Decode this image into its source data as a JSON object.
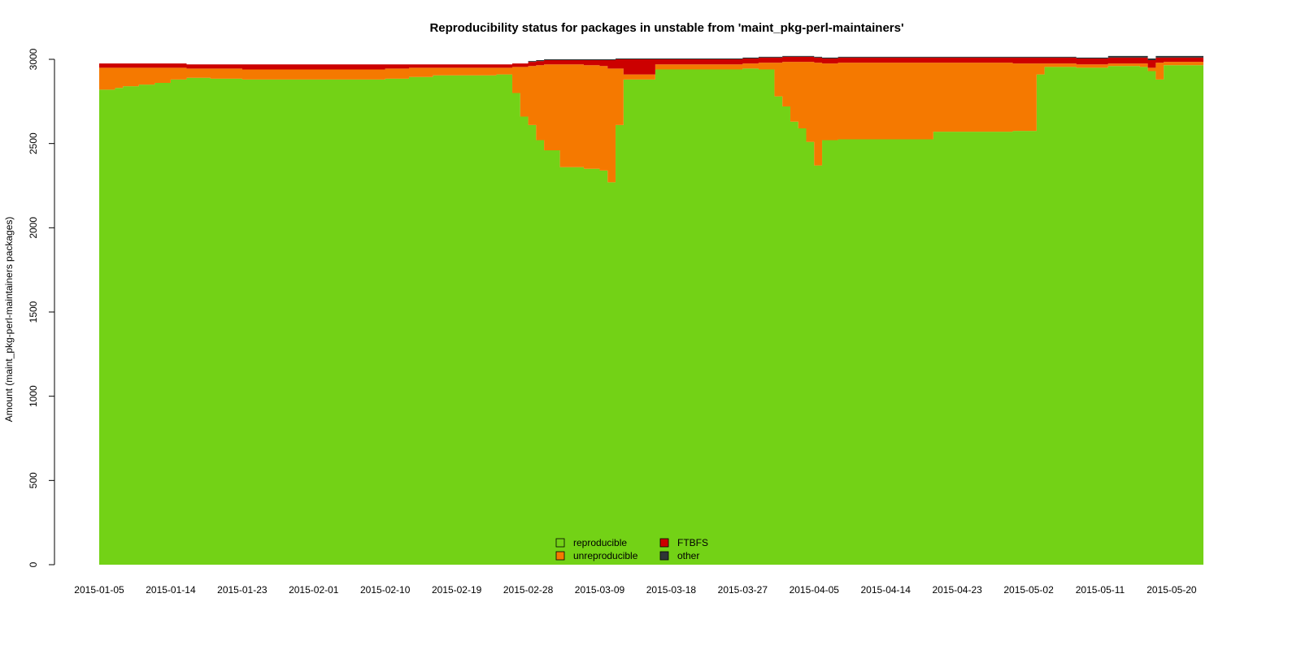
{
  "chart_data": {
    "type": "area",
    "stacked": true,
    "title": "Reproducibility status for packages in unstable from 'maint_pkg-perl-maintainers'",
    "xlabel": "",
    "ylabel": "Amount (maint_pkg-perl-maintainers packages)",
    "ylim": [
      0,
      3000
    ],
    "yticks": [
      0,
      500,
      1000,
      1500,
      2000,
      2500,
      3000
    ],
    "xticks": [
      "2015-01-05",
      "2015-01-14",
      "2015-01-23",
      "2015-02-01",
      "2015-02-10",
      "2015-02-19",
      "2015-02-28",
      "2015-03-09",
      "2015-03-18",
      "2015-03-27",
      "2015-04-05",
      "2015-04-14",
      "2015-04-23",
      "2015-05-02",
      "2015-05-11",
      "2015-05-20"
    ],
    "xrange": [
      "2015-01-05",
      "2015-05-24"
    ],
    "grid": false,
    "legend_position": "bottom-center",
    "series": [
      {
        "name": "reproducible",
        "color": "#73d216",
        "points": [
          [
            "2015-01-05",
            2820
          ],
          [
            "2015-01-07",
            2830
          ],
          [
            "2015-01-08",
            2840
          ],
          [
            "2015-01-10",
            2850
          ],
          [
            "2015-01-12",
            2860
          ],
          [
            "2015-01-14",
            2880
          ],
          [
            "2015-01-16",
            2890
          ],
          [
            "2015-01-19",
            2885
          ],
          [
            "2015-01-23",
            2880
          ],
          [
            "2015-02-10",
            2885
          ],
          [
            "2015-02-13",
            2895
          ],
          [
            "2015-02-16",
            2905
          ],
          [
            "2015-02-24",
            2910
          ],
          [
            "2015-02-26",
            2800
          ],
          [
            "2015-02-27",
            2660
          ],
          [
            "2015-02-28",
            2610
          ],
          [
            "2015-03-01",
            2520
          ],
          [
            "2015-03-02",
            2460
          ],
          [
            "2015-03-04",
            2360
          ],
          [
            "2015-03-07",
            2350
          ],
          [
            "2015-03-09",
            2340
          ],
          [
            "2015-03-10",
            2270
          ],
          [
            "2015-03-11",
            2610
          ],
          [
            "2015-03-12",
            2880
          ],
          [
            "2015-03-16",
            2940
          ],
          [
            "2015-03-27",
            2945
          ],
          [
            "2015-03-29",
            2940
          ],
          [
            "2015-03-31",
            2780
          ],
          [
            "2015-04-01",
            2720
          ],
          [
            "2015-04-02",
            2630
          ],
          [
            "2015-04-03",
            2590
          ],
          [
            "2015-04-04",
            2510
          ],
          [
            "2015-04-05",
            2370
          ],
          [
            "2015-04-06",
            2520
          ],
          [
            "2015-04-08",
            2525
          ],
          [
            "2015-04-20",
            2570
          ],
          [
            "2015-04-30",
            2575
          ],
          [
            "2015-05-03",
            2910
          ],
          [
            "2015-05-04",
            2955
          ],
          [
            "2015-05-08",
            2950
          ],
          [
            "2015-05-12",
            2960
          ],
          [
            "2015-05-16",
            2955
          ],
          [
            "2015-05-17",
            2930
          ],
          [
            "2015-05-18",
            2880
          ],
          [
            "2015-05-19",
            2965
          ],
          [
            "2015-05-24",
            2970
          ]
        ]
      },
      {
        "name": "unreproducible",
        "color": "#f57900",
        "points": [
          [
            "2015-01-05",
            130
          ],
          [
            "2015-01-07",
            120
          ],
          [
            "2015-01-08",
            110
          ],
          [
            "2015-01-10",
            100
          ],
          [
            "2015-01-12",
            90
          ],
          [
            "2015-01-14",
            70
          ],
          [
            "2015-01-16",
            55
          ],
          [
            "2015-01-19",
            60
          ],
          [
            "2015-01-23",
            60
          ],
          [
            "2015-02-10",
            60
          ],
          [
            "2015-02-13",
            55
          ],
          [
            "2015-02-16",
            45
          ],
          [
            "2015-02-24",
            40
          ],
          [
            "2015-02-26",
            155
          ],
          [
            "2015-02-27",
            295
          ],
          [
            "2015-02-28",
            350
          ],
          [
            "2015-03-01",
            445
          ],
          [
            "2015-03-02",
            510
          ],
          [
            "2015-03-04",
            610
          ],
          [
            "2015-03-07",
            615
          ],
          [
            "2015-03-09",
            620
          ],
          [
            "2015-03-10",
            675
          ],
          [
            "2015-03-11",
            335
          ],
          [
            "2015-03-12",
            30
          ],
          [
            "2015-03-16",
            30
          ],
          [
            "2015-03-27",
            30
          ],
          [
            "2015-03-29",
            40
          ],
          [
            "2015-03-31",
            200
          ],
          [
            "2015-04-01",
            265
          ],
          [
            "2015-04-02",
            355
          ],
          [
            "2015-04-03",
            395
          ],
          [
            "2015-04-04",
            475
          ],
          [
            "2015-04-05",
            610
          ],
          [
            "2015-04-06",
            455
          ],
          [
            "2015-04-08",
            455
          ],
          [
            "2015-04-20",
            410
          ],
          [
            "2015-04-30",
            400
          ],
          [
            "2015-05-03",
            65
          ],
          [
            "2015-05-04",
            20
          ],
          [
            "2015-05-08",
            20
          ],
          [
            "2015-05-12",
            15
          ],
          [
            "2015-05-16",
            20
          ],
          [
            "2015-05-17",
            20
          ],
          [
            "2015-05-18",
            100
          ],
          [
            "2015-05-19",
            20
          ],
          [
            "2015-05-24",
            20
          ]
        ]
      },
      {
        "name": "FTBFS",
        "color": "#cc0000",
        "points": [
          [
            "2015-01-05",
            25
          ],
          [
            "2015-01-07",
            25
          ],
          [
            "2015-01-08",
            25
          ],
          [
            "2015-01-10",
            25
          ],
          [
            "2015-01-12",
            25
          ],
          [
            "2015-01-14",
            25
          ],
          [
            "2015-01-16",
            25
          ],
          [
            "2015-01-19",
            25
          ],
          [
            "2015-01-23",
            30
          ],
          [
            "2015-02-10",
            25
          ],
          [
            "2015-02-13",
            20
          ],
          [
            "2015-02-16",
            20
          ],
          [
            "2015-02-24",
            20
          ],
          [
            "2015-02-26",
            20
          ],
          [
            "2015-02-27",
            20
          ],
          [
            "2015-02-28",
            25
          ],
          [
            "2015-03-01",
            25
          ],
          [
            "2015-03-02",
            25
          ],
          [
            "2015-03-04",
            25
          ],
          [
            "2015-03-07",
            30
          ],
          [
            "2015-03-09",
            35
          ],
          [
            "2015-03-10",
            50
          ],
          [
            "2015-03-11",
            55
          ],
          [
            "2015-03-12",
            90
          ],
          [
            "2015-03-16",
            30
          ],
          [
            "2015-03-27",
            30
          ],
          [
            "2015-03-29",
            30
          ],
          [
            "2015-03-31",
            30
          ],
          [
            "2015-04-01",
            30
          ],
          [
            "2015-04-02",
            30
          ],
          [
            "2015-04-03",
            30
          ],
          [
            "2015-04-04",
            30
          ],
          [
            "2015-04-05",
            30
          ],
          [
            "2015-04-06",
            30
          ],
          [
            "2015-04-08",
            30
          ],
          [
            "2015-04-20",
            30
          ],
          [
            "2015-04-30",
            35
          ],
          [
            "2015-05-03",
            35
          ],
          [
            "2015-05-04",
            35
          ],
          [
            "2015-05-08",
            35
          ],
          [
            "2015-05-12",
            35
          ],
          [
            "2015-05-16",
            35
          ],
          [
            "2015-05-17",
            45
          ],
          [
            "2015-05-18",
            30
          ],
          [
            "2015-05-19",
            25
          ],
          [
            "2015-05-24",
            25
          ]
        ]
      },
      {
        "name": "other",
        "color": "#2e3436",
        "points": [
          [
            "2015-01-05",
            0
          ],
          [
            "2015-01-07",
            0
          ],
          [
            "2015-01-08",
            0
          ],
          [
            "2015-01-10",
            0
          ],
          [
            "2015-01-12",
            0
          ],
          [
            "2015-01-14",
            0
          ],
          [
            "2015-01-16",
            0
          ],
          [
            "2015-01-19",
            0
          ],
          [
            "2015-01-23",
            0
          ],
          [
            "2015-02-10",
            0
          ],
          [
            "2015-02-13",
            0
          ],
          [
            "2015-02-16",
            0
          ],
          [
            "2015-02-24",
            0
          ],
          [
            "2015-02-26",
            0
          ],
          [
            "2015-02-27",
            0
          ],
          [
            "2015-02-28",
            5
          ],
          [
            "2015-03-01",
            5
          ],
          [
            "2015-03-02",
            5
          ],
          [
            "2015-03-04",
            5
          ],
          [
            "2015-03-07",
            5
          ],
          [
            "2015-03-09",
            5
          ],
          [
            "2015-03-10",
            5
          ],
          [
            "2015-03-11",
            5
          ],
          [
            "2015-03-12",
            5
          ],
          [
            "2015-03-16",
            5
          ],
          [
            "2015-03-27",
            5
          ],
          [
            "2015-03-29",
            5
          ],
          [
            "2015-03-31",
            5
          ],
          [
            "2015-04-01",
            5
          ],
          [
            "2015-04-02",
            5
          ],
          [
            "2015-04-03",
            5
          ],
          [
            "2015-04-04",
            5
          ],
          [
            "2015-04-05",
            5
          ],
          [
            "2015-04-06",
            5
          ],
          [
            "2015-04-08",
            5
          ],
          [
            "2015-04-20",
            5
          ],
          [
            "2015-04-30",
            5
          ],
          [
            "2015-05-03",
            5
          ],
          [
            "2015-05-04",
            5
          ],
          [
            "2015-05-08",
            5
          ],
          [
            "2015-05-12",
            10
          ],
          [
            "2015-05-16",
            10
          ],
          [
            "2015-05-17",
            10
          ],
          [
            "2015-05-18",
            10
          ],
          [
            "2015-05-19",
            10
          ],
          [
            "2015-05-24",
            10
          ]
        ]
      }
    ]
  }
}
